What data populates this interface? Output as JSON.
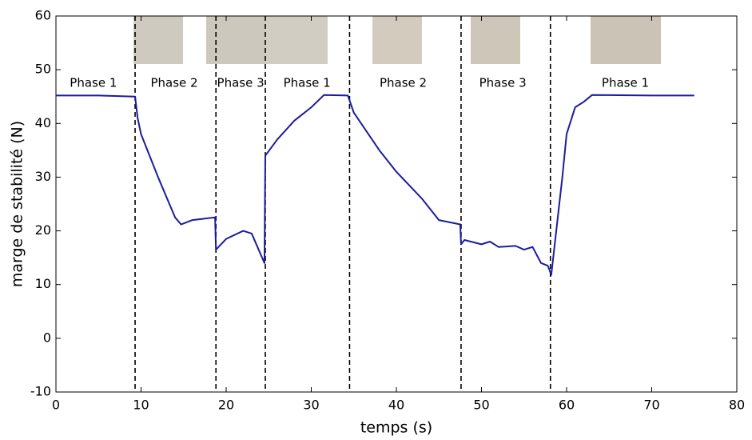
{
  "chart_data": {
    "type": "line",
    "xlabel": "temps (s)",
    "ylabel": "marge de stabilité (N)",
    "x": [
      0,
      5,
      9.3,
      9.6,
      10,
      12,
      14,
      14.7,
      16,
      18.7,
      18.8,
      20,
      22,
      23,
      24.5,
      24.6,
      26,
      28,
      30,
      31.5,
      34.3,
      35,
      38,
      40,
      43,
      45,
      47.5,
      47.6,
      48,
      50,
      51,
      52,
      54,
      55,
      56,
      57,
      57.8,
      58.2,
      58.5,
      59.5,
      60,
      61,
      62,
      63,
      70,
      75
    ],
    "values": [
      45.2,
      45.2,
      45,
      41,
      38,
      30,
      22.5,
      21.2,
      22,
      22.5,
      16.5,
      18.5,
      20,
      19.5,
      14,
      34,
      37,
      40.5,
      43,
      45.3,
      45.2,
      42,
      35,
      31,
      26,
      22,
      21.2,
      17.5,
      18.3,
      17.5,
      18,
      17,
      17.2,
      16.5,
      17,
      14,
      13.5,
      11.8,
      16,
      30,
      38,
      43,
      44,
      45.3,
      45.2,
      45.2
    ],
    "color": "#1c1c9c",
    "xlim": [
      0,
      80
    ],
    "ylim": [
      -10,
      60
    ],
    "xticks": [
      0,
      10,
      20,
      30,
      40,
      50,
      60,
      70,
      80
    ],
    "yticks": [
      -10,
      0,
      10,
      20,
      30,
      40,
      50,
      60
    ],
    "vlines": [
      9.3,
      18.8,
      24.6,
      34.5,
      47.6,
      58.1
    ],
    "annotations": [
      {
        "text": "Phase 1",
        "x": 4.4,
        "y": 47.5
      },
      {
        "text": "Phase 2",
        "x": 13.9,
        "y": 47.5
      },
      {
        "text": "Phase 3",
        "x": 21.7,
        "y": 47.5
      },
      {
        "text": "Phase 1",
        "x": 29.5,
        "y": 47.5
      },
      {
        "text": "Phase 2",
        "x": 40.8,
        "y": 47.5
      },
      {
        "text": "Phase 3",
        "x": 52.5,
        "y": 47.5
      },
      {
        "text": "Phase 1",
        "x": 66.9,
        "y": 47.5
      }
    ]
  }
}
